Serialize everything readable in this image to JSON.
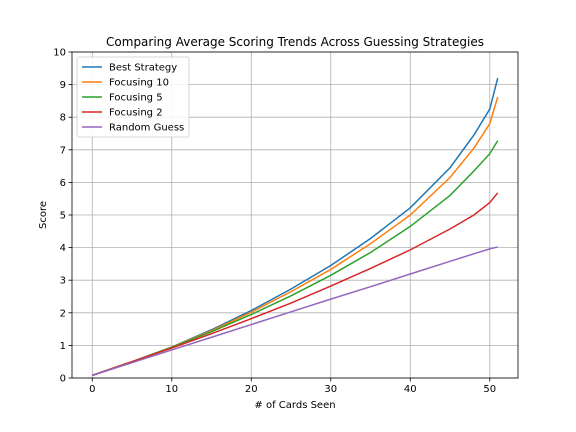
{
  "chart_data": {
    "type": "line",
    "title": "Comparing Average Scoring Trends Across Guessing Strategies",
    "xlabel": "# of Cards Seen",
    "ylabel": "Score",
    "xlim": [
      -2.55,
      53.55
    ],
    "ylim": [
      0,
      10
    ],
    "xticks": [
      0,
      10,
      20,
      30,
      40,
      50
    ],
    "yticks": [
      0,
      1,
      2,
      3,
      4,
      5,
      6,
      7,
      8,
      9,
      10
    ],
    "grid": true,
    "legend_position": "upper-left",
    "x": [
      0,
      5,
      10,
      15,
      20,
      25,
      30,
      35,
      40,
      45,
      48,
      50,
      51
    ],
    "series": [
      {
        "name": "Best Strategy",
        "color": "#1f77b4",
        "values": [
          0.08,
          0.5,
          0.95,
          1.48,
          2.07,
          2.73,
          3.45,
          4.28,
          5.22,
          6.45,
          7.45,
          8.25,
          9.2
        ]
      },
      {
        "name": "Focusing 10",
        "color": "#ff7f0e",
        "values": [
          0.08,
          0.5,
          0.95,
          1.45,
          2.02,
          2.65,
          3.33,
          4.12,
          5.0,
          6.15,
          7.05,
          7.8,
          8.62
        ]
      },
      {
        "name": "Focusing 5",
        "color": "#2ca02c",
        "values": [
          0.08,
          0.5,
          0.94,
          1.42,
          1.95,
          2.52,
          3.15,
          3.85,
          4.65,
          5.6,
          6.35,
          6.88,
          7.28
        ]
      },
      {
        "name": "Focusing 2",
        "color": "#d62728",
        "values": [
          0.08,
          0.5,
          0.92,
          1.36,
          1.82,
          2.3,
          2.82,
          3.36,
          3.93,
          4.57,
          5.0,
          5.38,
          5.68
        ]
      },
      {
        "name": "Random Guess",
        "color": "#9467bd",
        "values": [
          0.08,
          0.47,
          0.86,
          1.25,
          1.64,
          2.03,
          2.42,
          2.8,
          3.19,
          3.58,
          3.81,
          3.96,
          4.02
        ]
      }
    ]
  }
}
